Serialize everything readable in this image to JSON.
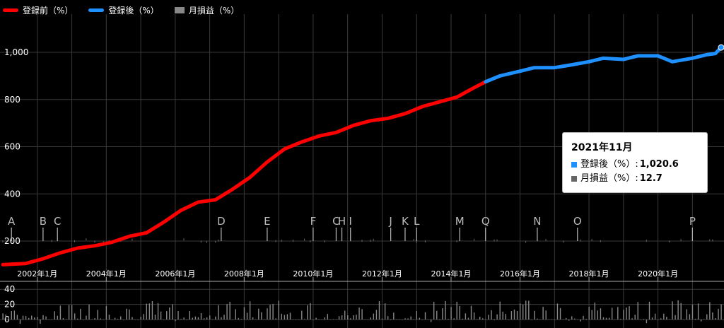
{
  "legend": {
    "before_label": "登録前（%）",
    "after_label": "登録後（%）",
    "monthly_label": "月損益（%）"
  },
  "tooltip": {
    "title": "2021年11月",
    "after_label": "登録後（%）",
    "after_value": "1,020.6",
    "monthly_label": "月損益（%）",
    "monthly_value": "12.7",
    "separator": ":"
  },
  "chart_data": {
    "type": "line",
    "colors": {
      "before": "#ff0000",
      "after": "#1e90ff",
      "bars": "#888888",
      "grid": "#3a3a3a"
    },
    "series": [
      {
        "name": "登録前（%）",
        "color": "#ff0000",
        "points": [
          [
            "2001-01",
            100
          ],
          [
            "2001-09",
            105
          ],
          [
            "2002-03",
            125
          ],
          [
            "2002-09",
            150
          ],
          [
            "2003-03",
            170
          ],
          [
            "2003-09",
            180
          ],
          [
            "2004-03",
            195
          ],
          [
            "2004-09",
            220
          ],
          [
            "2005-03",
            235
          ],
          [
            "2005-09",
            280
          ],
          [
            "2006-03",
            330
          ],
          [
            "2006-09",
            365
          ],
          [
            "2007-03",
            375
          ],
          [
            "2007-09",
            420
          ],
          [
            "2008-03",
            470
          ],
          [
            "2008-09",
            535
          ],
          [
            "2009-03",
            590
          ],
          [
            "2009-09",
            620
          ],
          [
            "2010-03",
            645
          ],
          [
            "2010-09",
            660
          ],
          [
            "2011-03",
            690
          ],
          [
            "2011-09",
            710
          ],
          [
            "2012-03",
            720
          ],
          [
            "2012-09",
            740
          ],
          [
            "2013-03",
            770
          ],
          [
            "2013-09",
            790
          ],
          [
            "2014-03",
            810
          ],
          [
            "2014-09",
            850
          ],
          [
            "2015-01",
            875
          ]
        ]
      },
      {
        "name": "登録後（%）",
        "color": "#1e90ff",
        "points": [
          [
            "2015-01",
            875
          ],
          [
            "2015-06",
            900
          ],
          [
            "2016-01",
            920
          ],
          [
            "2016-06",
            935
          ],
          [
            "2017-01",
            935
          ],
          [
            "2017-06",
            945
          ],
          [
            "2018-01",
            960
          ],
          [
            "2018-06",
            975
          ],
          [
            "2019-01",
            970
          ],
          [
            "2019-06",
            985
          ],
          [
            "2020-01",
            985
          ],
          [
            "2020-06",
            960
          ],
          [
            "2021-01",
            975
          ],
          [
            "2021-06",
            990
          ],
          [
            "2021-09",
            995
          ],
          [
            "2021-11",
            1020.6
          ]
        ]
      }
    ],
    "monthly_bars_seed": 12.7,
    "x_range": [
      "2001-01",
      "2021-11"
    ],
    "ylim": [
      200,
      1000
    ],
    "y_ticks": [
      200,
      400,
      600,
      800,
      1000
    ],
    "y_tick_labels": [
      "200",
      "400",
      "600",
      "800",
      "1,000"
    ],
    "x_ticks": [
      "2002-01",
      "2004-01",
      "2006-01",
      "2008-01",
      "2010-01",
      "2012-01",
      "2014-01",
      "2016-01",
      "2018-01",
      "2020-01"
    ],
    "x_tick_labels": [
      "2002年1月",
      "2004年1月",
      "2006年1月",
      "2008年1月",
      "2010年1月",
      "2012年1月",
      "2014年1月",
      "2016年1月",
      "2018年1月",
      "2020年1月"
    ],
    "lower_y_ticks": [
      0,
      20,
      40
    ],
    "annotations": [
      {
        "label": "A",
        "date": "2001-04"
      },
      {
        "label": "B",
        "date": "2002-03"
      },
      {
        "label": "C",
        "date": "2002-08"
      },
      {
        "label": "D",
        "date": "2007-05"
      },
      {
        "label": "E",
        "date": "2008-09"
      },
      {
        "label": "F",
        "date": "2010-01"
      },
      {
        "label": "C",
        "date": "2010-09"
      },
      {
        "label": "H",
        "date": "2010-11"
      },
      {
        "label": "I",
        "date": "2011-02"
      },
      {
        "label": "J",
        "date": "2012-04"
      },
      {
        "label": "K",
        "date": "2012-09"
      },
      {
        "label": "L",
        "date": "2013-01"
      },
      {
        "label": "M",
        "date": "2014-04"
      },
      {
        "label": "Q",
        "date": "2015-01"
      },
      {
        "label": "N",
        "date": "2016-07"
      },
      {
        "label": "O",
        "date": "2017-09"
      },
      {
        "label": "P",
        "date": "2021-01"
      }
    ],
    "grid": true,
    "legend_position": "top-left"
  }
}
